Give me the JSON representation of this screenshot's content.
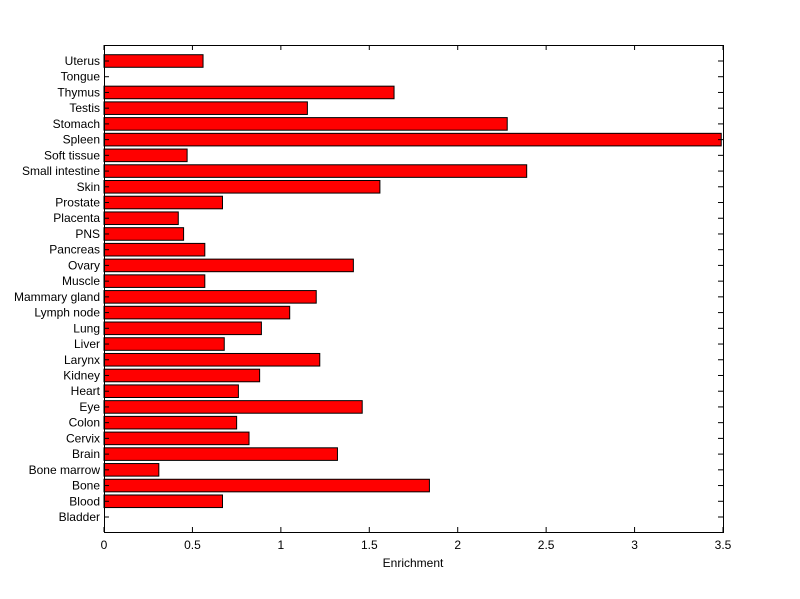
{
  "chart_data": {
    "type": "bar",
    "orientation": "horizontal",
    "title": "",
    "xlabel": "Enrichment",
    "ylabel": "",
    "xlim": [
      0,
      3.5
    ],
    "xticks": [
      0,
      0.5,
      1,
      1.5,
      2,
      2.5,
      3,
      3.5
    ],
    "xtick_labels": [
      "0",
      "0.5",
      "1",
      "1.5",
      "2",
      "2.5",
      "3",
      "3.5"
    ],
    "grid": false,
    "bar_color": "#ff0000",
    "bar_edge_color": "#000000",
    "categories": [
      "Uterus",
      "Tongue",
      "Thymus",
      "Testis",
      "Stomach",
      "Spleen",
      "Soft tissue",
      "Small intestine",
      "Skin",
      "Prostate",
      "Placenta",
      "PNS",
      "Pancreas",
      "Ovary",
      "Muscle",
      "Mammary gland",
      "Lymph node",
      "Lung",
      "Liver",
      "Larynx",
      "Kidney",
      "Heart",
      "Eye",
      "Colon",
      "Cervix",
      "Brain",
      "Bone marrow",
      "Bone",
      "Blood",
      "Bladder"
    ],
    "values": [
      0.56,
      0,
      1.64,
      1.15,
      2.28,
      3.49,
      0.47,
      2.39,
      1.56,
      0.67,
      0.42,
      0.45,
      0.57,
      1.41,
      0.57,
      1.2,
      1.05,
      0.89,
      0.68,
      1.22,
      0.88,
      0.76,
      1.46,
      0.75,
      0.82,
      1.32,
      0.31,
      1.84,
      0.67,
      0
    ]
  }
}
